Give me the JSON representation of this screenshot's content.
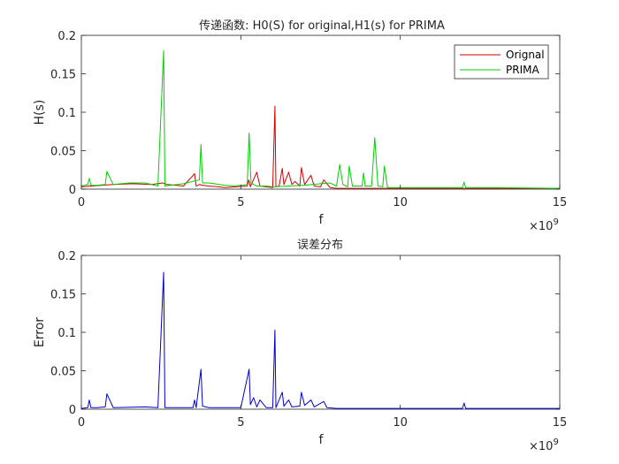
{
  "chart_data": [
    {
      "type": "line",
      "title": "传递函数: H0(S) for original,H1(s) for PRIMA",
      "xlabel": "f",
      "ylabel": "H(s)",
      "x_exponent_label": "×10",
      "x_exponent_power": "9",
      "xlim": [
        0,
        15
      ],
      "ylim": [
        0,
        0.2
      ],
      "xticks": [
        "0",
        "5",
        "10",
        "15"
      ],
      "yticks": [
        "0",
        "0.05",
        "0.1",
        "0.15",
        "0.2"
      ],
      "legend_position": "top-right",
      "grid": false,
      "series": [
        {
          "name": "Orignal",
          "color": "#d40000",
          "x": [
            0,
            0.3,
            1.0,
            1.6,
            2.2,
            2.55,
            2.7,
            3.2,
            3.55,
            3.6,
            3.7,
            3.8,
            4.0,
            4.3,
            4.5,
            5.2,
            5.25,
            5.3,
            5.5,
            5.6,
            5.8,
            6.0,
            6.07,
            6.1,
            6.2,
            6.3,
            6.35,
            6.5,
            6.6,
            6.7,
            6.85,
            6.9,
            7.0,
            7.2,
            7.3,
            7.5,
            7.6,
            7.8,
            8.0,
            9.0,
            10.0,
            12.0,
            15.0
          ],
          "y": [
            0.003,
            0.004,
            0.006,
            0.007,
            0.006,
            0.008,
            0.006,
            0.004,
            0.02,
            0.004,
            0.006,
            0.005,
            0.004,
            0.003,
            0.002,
            0.004,
            0.012,
            0.003,
            0.022,
            0.004,
            0.003,
            0.002,
            0.108,
            0.003,
            0.004,
            0.027,
            0.006,
            0.022,
            0.006,
            0.01,
            0.004,
            0.028,
            0.006,
            0.018,
            0.004,
            0.003,
            0.012,
            0.002,
            0.001,
            0.001,
            0.001,
            0.001,
            0.001
          ]
        },
        {
          "name": "PRIMA",
          "color": "#00d000",
          "x": [
            0,
            0.2,
            0.25,
            0.3,
            0.5,
            0.75,
            0.8,
            1.0,
            1.5,
            2.0,
            2.4,
            2.58,
            2.62,
            2.8,
            3.2,
            3.7,
            3.75,
            3.8,
            4.0,
            4.5,
            4.8,
            5.2,
            5.26,
            5.32,
            5.5,
            5.8,
            6.0,
            6.5,
            7.0,
            7.5,
            7.8,
            8.0,
            8.1,
            8.2,
            8.35,
            8.4,
            8.5,
            8.8,
            8.85,
            8.9,
            9.1,
            9.2,
            9.3,
            9.45,
            9.5,
            9.6,
            10.0,
            11.5,
            11.95,
            12.0,
            12.05,
            13.0,
            15.0
          ],
          "y": [
            0.004,
            0.006,
            0.014,
            0.005,
            0.005,
            0.006,
            0.023,
            0.006,
            0.008,
            0.008,
            0.004,
            0.18,
            0.004,
            0.005,
            0.007,
            0.012,
            0.058,
            0.008,
            0.008,
            0.005,
            0.004,
            0.006,
            0.073,
            0.008,
            0.004,
            0.004,
            0.003,
            0.004,
            0.005,
            0.007,
            0.008,
            0.004,
            0.032,
            0.006,
            0.003,
            0.03,
            0.004,
            0.004,
            0.021,
            0.004,
            0.004,
            0.067,
            0.004,
            0.003,
            0.03,
            0.002,
            0.002,
            0.002,
            0.002,
            0.009,
            0.002,
            0.002,
            0.001
          ]
        }
      ]
    },
    {
      "type": "line",
      "title": "误差分布",
      "xlabel": "f",
      "ylabel": "Error",
      "x_exponent_label": "×10",
      "x_exponent_power": "9",
      "xlim": [
        0,
        15
      ],
      "ylim": [
        0,
        0.2
      ],
      "xticks": [
        "0",
        "5",
        "10",
        "15"
      ],
      "yticks": [
        "0",
        "0.05",
        "0.1",
        "0.15",
        "0.2"
      ],
      "grid": false,
      "series": [
        {
          "color": "#0000d0",
          "x": [
            0,
            0.2,
            0.25,
            0.3,
            0.5,
            0.75,
            0.8,
            1.0,
            2.0,
            2.4,
            2.58,
            2.62,
            3.0,
            3.5,
            3.55,
            3.6,
            3.75,
            3.8,
            4.0,
            4.5,
            5.0,
            5.26,
            5.3,
            5.4,
            5.5,
            5.6,
            5.8,
            6.0,
            6.07,
            6.1,
            6.3,
            6.35,
            6.5,
            6.6,
            6.85,
            6.9,
            7.0,
            7.2,
            7.3,
            7.6,
            7.7,
            8.0,
            10.0,
            11.95,
            12.0,
            12.05,
            15.0
          ],
          "y": [
            0.001,
            0.002,
            0.012,
            0.002,
            0.002,
            0.003,
            0.02,
            0.002,
            0.003,
            0.002,
            0.178,
            0.002,
            0.002,
            0.002,
            0.012,
            0.002,
            0.052,
            0.004,
            0.002,
            0.002,
            0.002,
            0.052,
            0.006,
            0.015,
            0.003,
            0.012,
            0.002,
            0.002,
            0.103,
            0.002,
            0.022,
            0.004,
            0.012,
            0.003,
            0.004,
            0.022,
            0.005,
            0.012,
            0.003,
            0.01,
            0.002,
            0.001,
            0.001,
            0.001,
            0.008,
            0.001,
            0.001
          ]
        }
      ]
    }
  ]
}
